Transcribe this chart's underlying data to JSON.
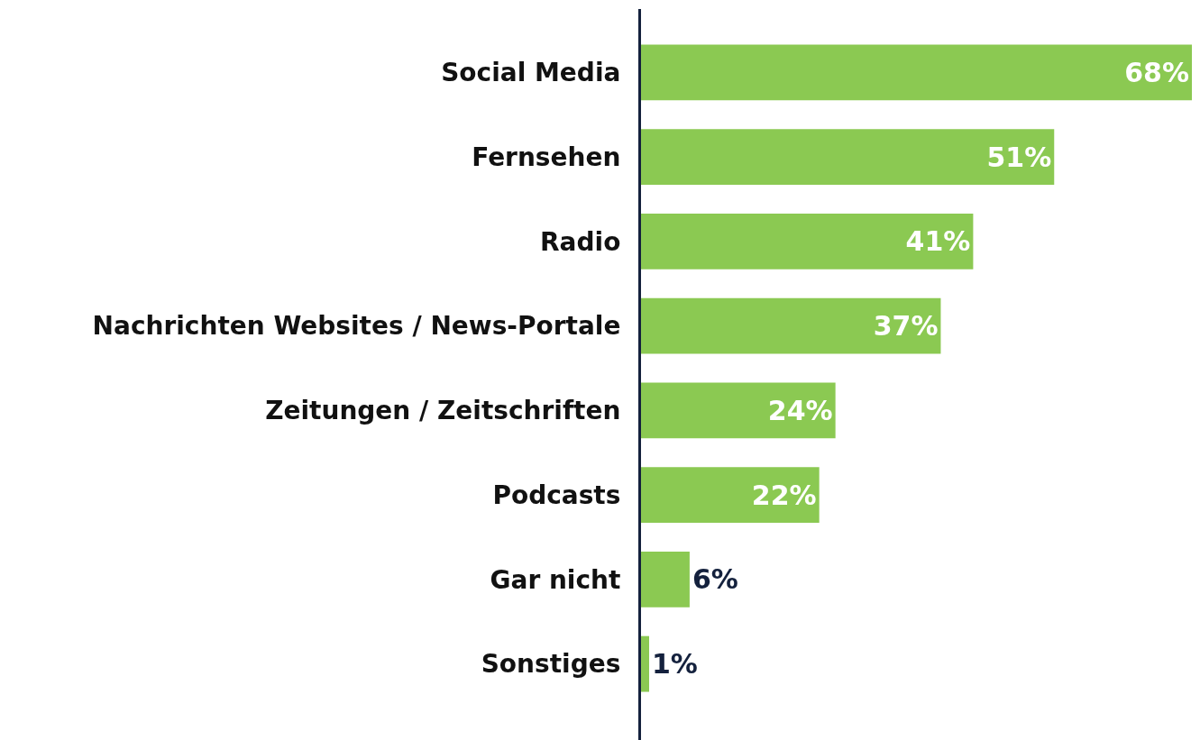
{
  "chart_data": {
    "type": "bar",
    "orientation": "horizontal",
    "categories": [
      "Social Media",
      "Fernsehen",
      "Radio",
      "Nachrichten Websites / News-Portale",
      "Zeitungen / Zeitschriften",
      "Podcasts",
      "Gar nicht",
      "Sonstiges"
    ],
    "values": [
      68,
      51,
      41,
      37,
      24,
      22,
      6,
      1
    ],
    "value_labels": [
      "68%",
      "51%",
      "41%",
      "37%",
      "24%",
      "22%",
      "6%",
      "1%"
    ],
    "color": "#8bc952",
    "xlim": [
      0,
      69
    ],
    "tick_labels": "y"
  }
}
